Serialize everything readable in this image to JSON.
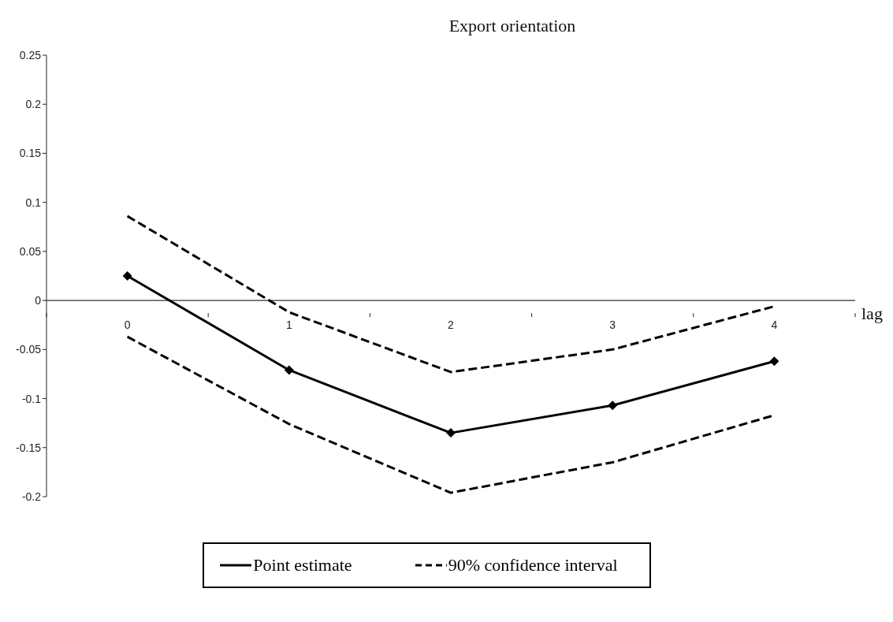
{
  "chart_data": {
    "type": "line",
    "title": "Export orientation",
    "xlabel": "lag",
    "categories": [
      "0",
      "1",
      "2",
      "3",
      "4"
    ],
    "series": [
      {
        "name": "Point estimate",
        "color": "#000000",
        "marker": "diamond",
        "line_style": "solid",
        "values": [
          0.025,
          -0.071,
          -0.135,
          -0.107,
          -0.062
        ]
      },
      {
        "name": "90% confidence interval",
        "color": "#000000",
        "marker": "none",
        "line_style": "dashed",
        "values": [
          0.086,
          -0.012,
          -0.073,
          -0.05,
          -0.006
        ]
      },
      {
        "color": "#000000",
        "marker": "none",
        "line_style": "dashed",
        "values": [
          -0.037,
          -0.126,
          -0.196,
          -0.165,
          -0.117
        ]
      }
    ],
    "ylim": [
      -0.2,
      0.25
    ],
    "yticks": [
      -0.2,
      -0.15,
      -0.1,
      -0.05,
      0,
      0.05,
      0.1,
      0.15,
      0.2,
      0.25
    ],
    "legend": "bottom"
  }
}
